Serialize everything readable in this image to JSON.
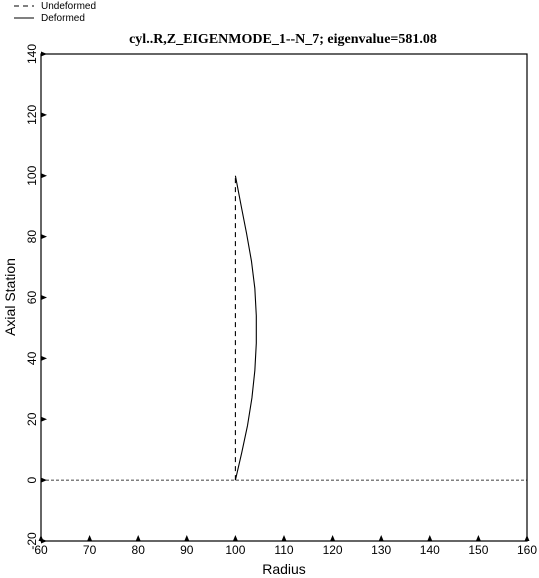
{
  "chart_data": {
    "type": "line",
    "title": "cyl..R,Z_EIGENMODE_1--N_7; eigenvalue=581.08",
    "xlabel": "Radius",
    "ylabel": "Axial Station",
    "xlim": [
      60,
      160
    ],
    "ylim": [
      -20,
      140
    ],
    "xticks": [
      60,
      70,
      80,
      90,
      100,
      110,
      120,
      130,
      140,
      150,
      160
    ],
    "yticks": [
      -20,
      0,
      20,
      40,
      60,
      80,
      100,
      120,
      140
    ],
    "legend_position": "top-left",
    "series": [
      {
        "name": "Undeformed",
        "style": "dashed",
        "x": [
          100,
          100
        ],
        "y": [
          0,
          100
        ]
      },
      {
        "name": "Deformed",
        "style": "solid",
        "x": [
          100,
          101.3,
          102.5,
          103.4,
          104.0,
          104.3,
          104.3,
          104.0,
          103.3,
          102.3,
          101.2,
          100
        ],
        "y": [
          0,
          9,
          18,
          27,
          36,
          45,
          54,
          63,
          72,
          81,
          90,
          100
        ]
      },
      {
        "name": "axis-baseline",
        "style": "dashed",
        "x": [
          60,
          160
        ],
        "y": [
          0,
          0
        ]
      }
    ]
  }
}
